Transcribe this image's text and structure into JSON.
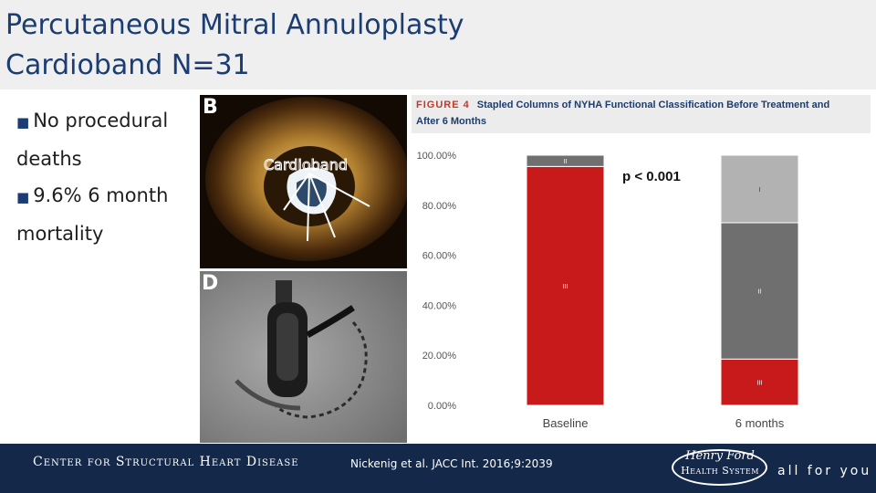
{
  "slide": {
    "title_line1": "Percutaneous Mitral Annuloplasty",
    "title_line2": "Cardioband N=31",
    "bullets": [
      "No procedural deaths",
      "9.6% 6 month mortality"
    ]
  },
  "images": {
    "top_panel_letter": "B",
    "top_panel_label": "Cardioband",
    "bottom_panel_letter": "D"
  },
  "figure": {
    "label": "FIGURE 4",
    "caption_line1": "Stapled Columns of NYHA Functional Classification Before Treatment and",
    "caption_line2": "After 6 Months"
  },
  "chart_data": {
    "type": "bar",
    "stacked": true,
    "categories": [
      "Baseline",
      "6 months"
    ],
    "series": [
      {
        "name": "III",
        "values": [
          95.5,
          18.5
        ],
        "color": "#c81a1a"
      },
      {
        "name": "II",
        "values": [
          4.5,
          54.5
        ],
        "color": "#6f6f6f"
      },
      {
        "name": "I",
        "values": [
          0,
          27
        ],
        "color": "#b2b2b2"
      }
    ],
    "ylim": [
      0,
      100
    ],
    "yticks": [
      "0.00%",
      "20.00%",
      "40.00%",
      "60.00%",
      "80.00%",
      "100.00%"
    ],
    "annotation": "p < 0.001",
    "grid": false,
    "legend": "none"
  },
  "footer": {
    "left": "Center for Structural Heart Disease",
    "citation": "Nickenig et al. JACC Int. 2016;9:2039",
    "logo_script": "Henry Ford",
    "logo_caps": "Health System",
    "tagline": "all for you"
  }
}
